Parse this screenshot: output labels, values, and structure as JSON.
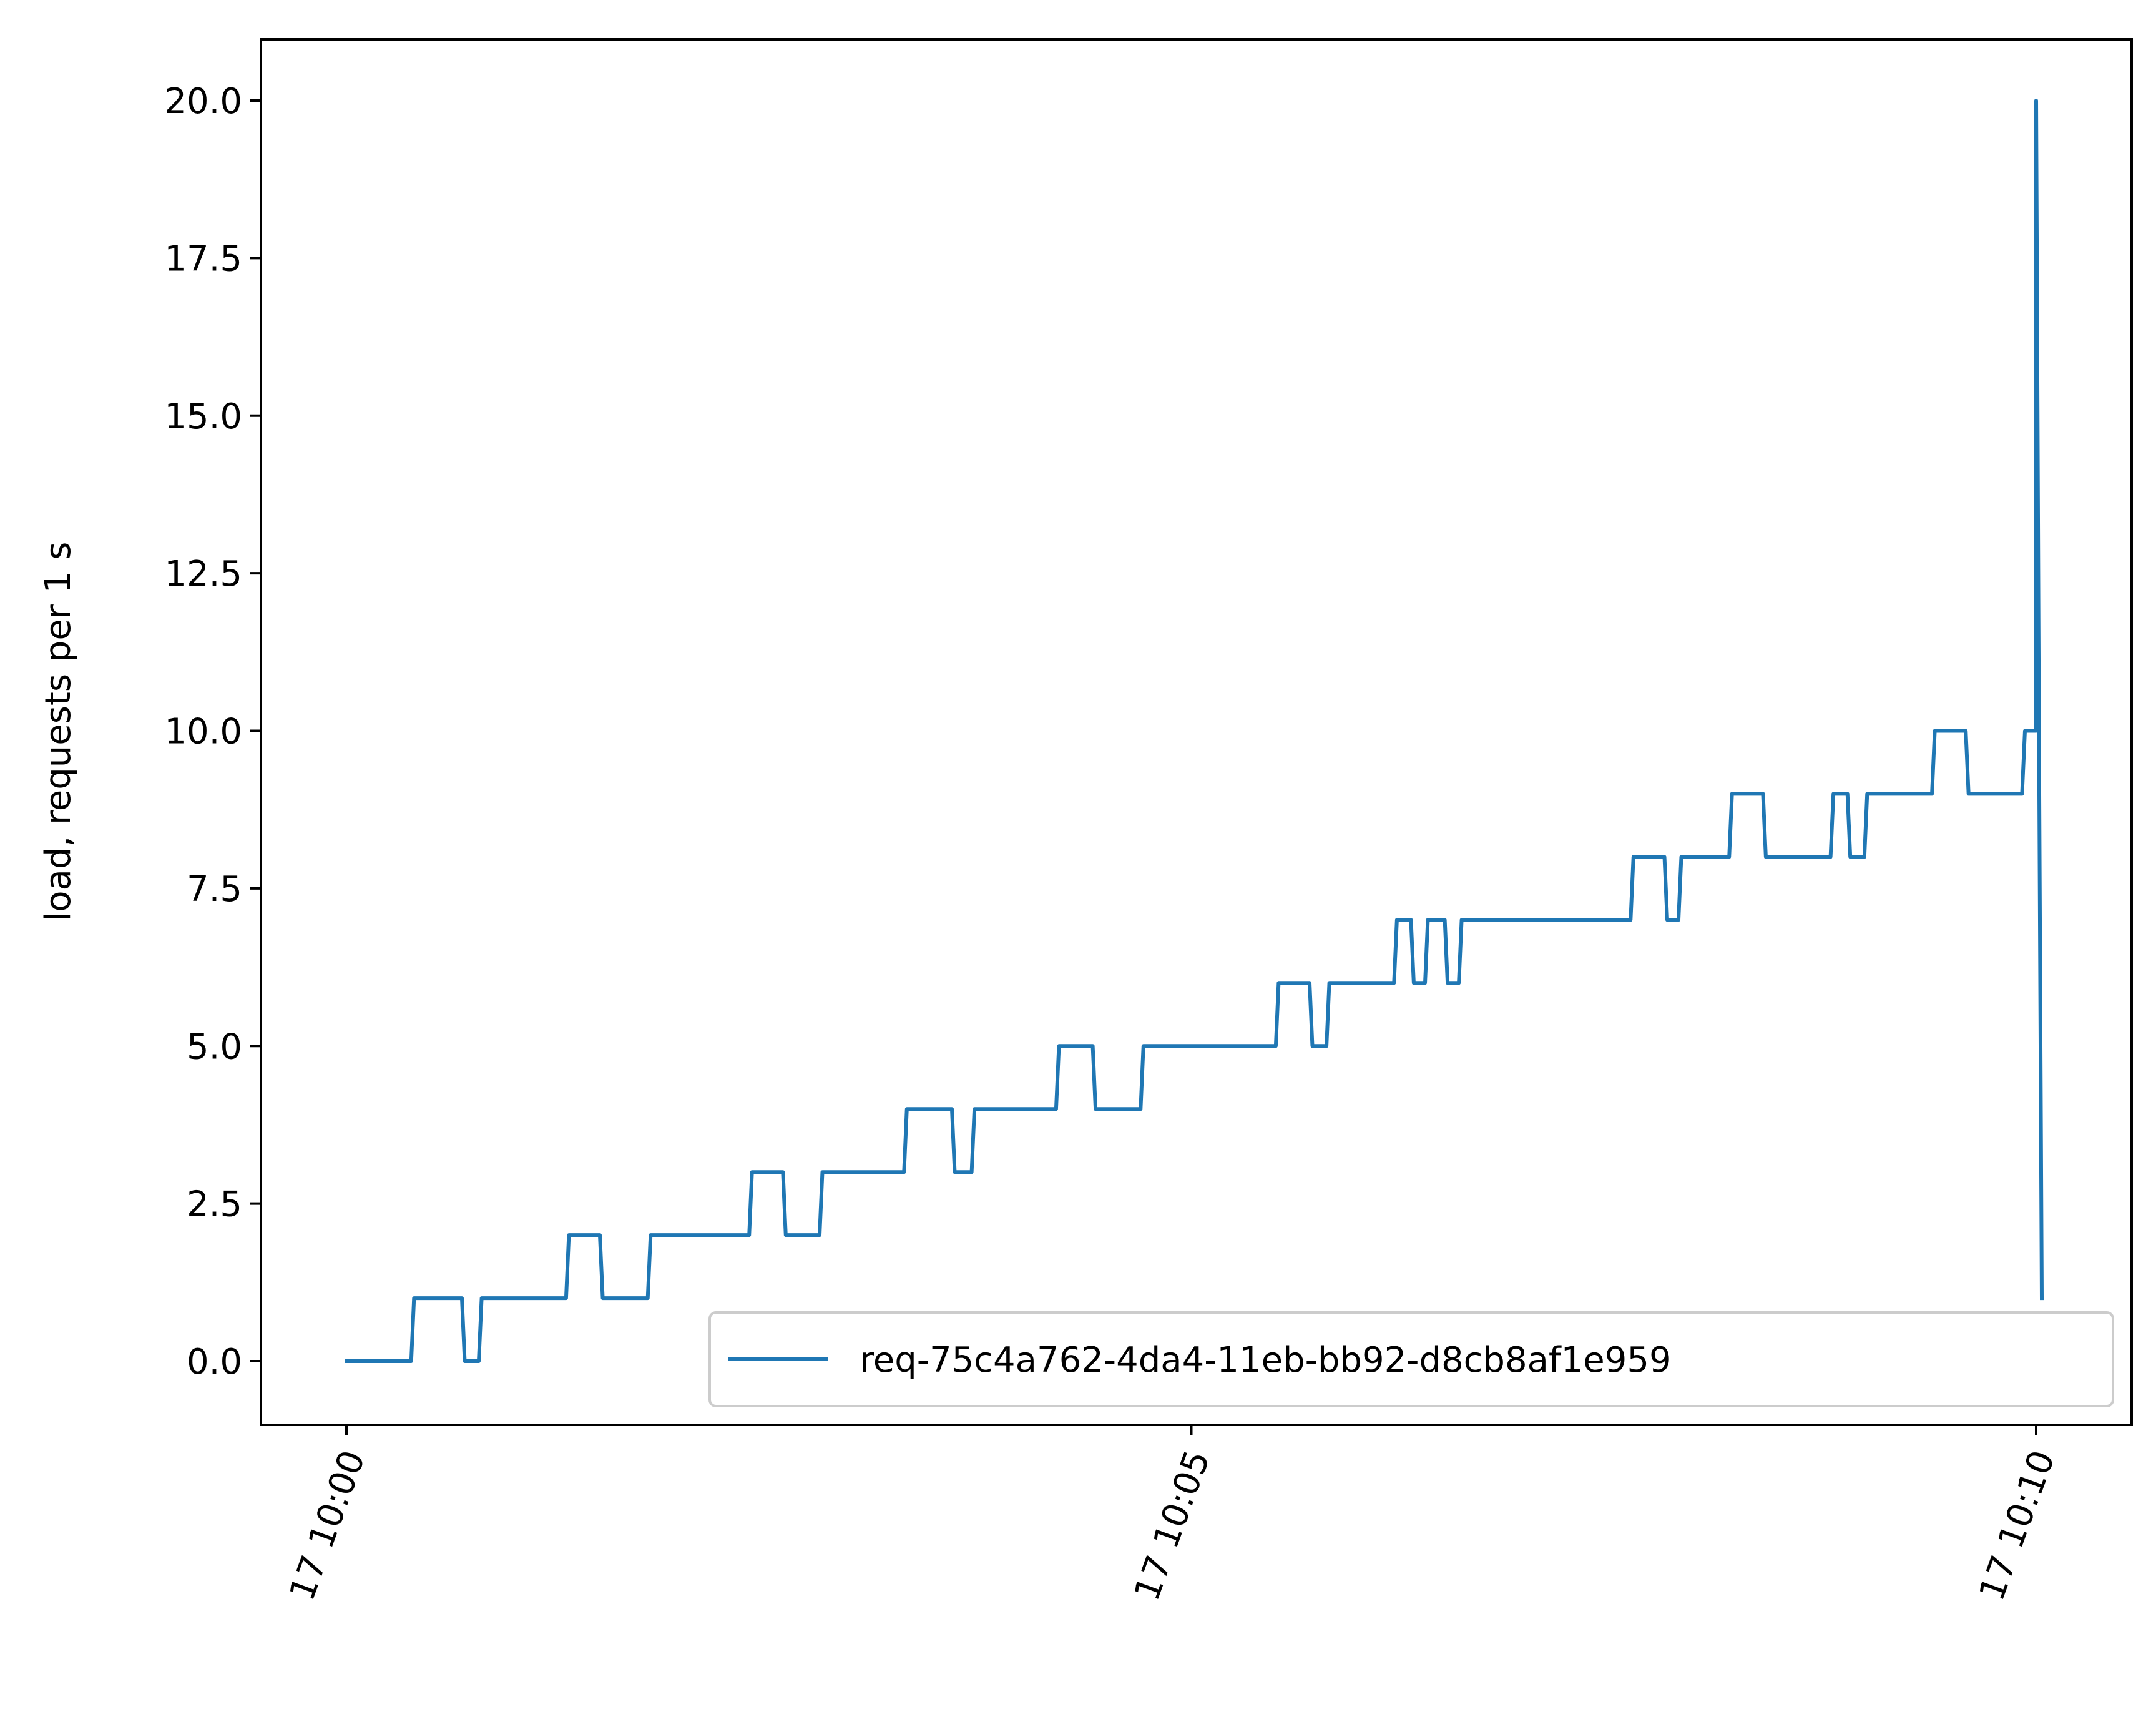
{
  "chart_data": {
    "type": "line",
    "title": "",
    "xlabel": "",
    "ylabel": "load, requests per 1 s",
    "xlim": [
      "10:00:00",
      "10:10:27"
    ],
    "ylim": [
      -1.0,
      21.0
    ],
    "grid": false,
    "legend_position": "bottom-right",
    "x_ticks": [
      {
        "value": "10:00:00",
        "label": "17 10:00"
      },
      {
        "value": "10:05:00",
        "label": "17 10:05"
      },
      {
        "value": "10:10:00",
        "label": "17 10:10"
      }
    ],
    "y_ticks": [
      {
        "value": 0.0,
        "label": "0.0"
      },
      {
        "value": 2.5,
        "label": "2.5"
      },
      {
        "value": 5.0,
        "label": "5.0"
      },
      {
        "value": 7.5,
        "label": "7.5"
      },
      {
        "value": 10.0,
        "label": "10.0"
      },
      {
        "value": 12.5,
        "label": "12.5"
      },
      {
        "value": 15.0,
        "label": "15.0"
      },
      {
        "value": 17.5,
        "label": "17.5"
      },
      {
        "value": 20.0,
        "label": "20.0"
      }
    ],
    "series": [
      {
        "name": "req-75c4a762-4da4-11eb-bb92-d8cb8af1e959",
        "color": "#1f77b4",
        "x": [
          "10:00:00",
          "10:00:23",
          "10:00:24",
          "10:00:41",
          "10:00:42",
          "10:00:47",
          "10:00:48",
          "10:01:18",
          "10:01:19",
          "10:01:30",
          "10:01:31",
          "10:01:47",
          "10:01:48",
          "10:02:23",
          "10:02:24",
          "10:02:35",
          "10:02:36",
          "10:02:48",
          "10:02:49",
          "10:03:18",
          "10:03:19",
          "10:03:35",
          "10:03:36",
          "10:03:42",
          "10:03:43",
          "10:04:12",
          "10:04:13",
          "10:04:25",
          "10:04:26",
          "10:04:42",
          "10:04:43",
          "10:05:30",
          "10:05:31",
          "10:05:42",
          "10:05:43",
          "10:05:48",
          "10:05:49",
          "10:06:12",
          "10:06:13",
          "10:06:18",
          "10:06:19",
          "10:06:23",
          "10:06:24",
          "10:06:30",
          "10:06:31",
          "10:06:35",
          "10:06:36",
          "10:07:36",
          "10:07:37",
          "10:07:48",
          "10:07:49",
          "10:07:53",
          "10:07:54",
          "10:08:11",
          "10:08:12",
          "10:08:23",
          "10:08:24",
          "10:08:47",
          "10:08:48",
          "10:08:53",
          "10:08:54",
          "10:08:59",
          "10:09:00",
          "10:09:23",
          "10:09:24",
          "10:09:35",
          "10:09:36",
          "10:09:55",
          "10:09:56",
          "10:09:59",
          "10:10:00",
          "10:10:00",
          "10:10:01",
          "10:10:01",
          "10:10:02"
        ],
        "y": [
          0,
          0,
          1,
          1,
          0,
          0,
          1,
          1,
          2,
          2,
          1,
          1,
          2,
          2,
          3,
          3,
          2,
          2,
          3,
          3,
          4,
          4,
          3,
          3,
          4,
          4,
          5,
          5,
          4,
          4,
          5,
          5,
          6,
          6,
          5,
          5,
          6,
          6,
          7,
          7,
          6,
          6,
          7,
          7,
          6,
          6,
          7,
          7,
          8,
          8,
          7,
          7,
          8,
          8,
          9,
          9,
          8,
          8,
          9,
          9,
          8,
          8,
          9,
          9,
          10,
          10,
          9,
          9,
          10,
          10,
          10,
          20,
          10,
          10,
          1
        ]
      }
    ]
  }
}
